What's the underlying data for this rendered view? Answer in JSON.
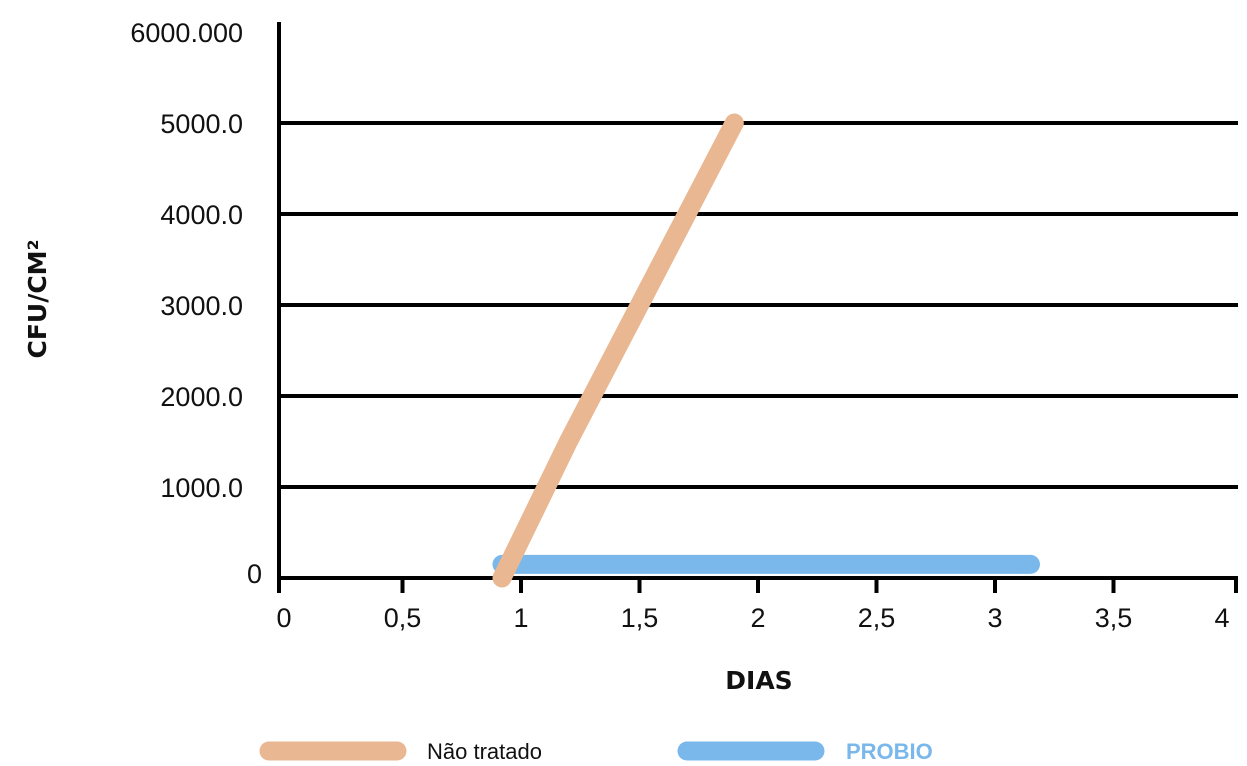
{
  "chart_data": {
    "type": "line",
    "title": "",
    "xlabel": "DIAS",
    "ylabel": "CFU/CM²",
    "xlim": [
      0,
      4
    ],
    "ylim": [
      0,
      6000
    ],
    "x_ticks": [
      "0",
      "0,5",
      "1",
      "1,5",
      "2",
      "2,5",
      "3",
      "3,5",
      "4"
    ],
    "y_ticks": [
      "0",
      "1000.0",
      "2000.0",
      "3000.0",
      "4000.0",
      "5000.0",
      "6000.000"
    ],
    "grid": "horizontal",
    "legend_position": "bottom",
    "series": [
      {
        "name": "Não tratado",
        "color": "#E9B791",
        "x": [
          0.92,
          1.2,
          1.5,
          1.7,
          1.9
        ],
        "y": [
          0,
          1500,
          3000,
          4000,
          5000
        ]
      },
      {
        "name": "PROBIO",
        "color": "#7AB8EB",
        "x": [
          0.92,
          3.15
        ],
        "y": [
          150,
          150
        ]
      }
    ]
  }
}
